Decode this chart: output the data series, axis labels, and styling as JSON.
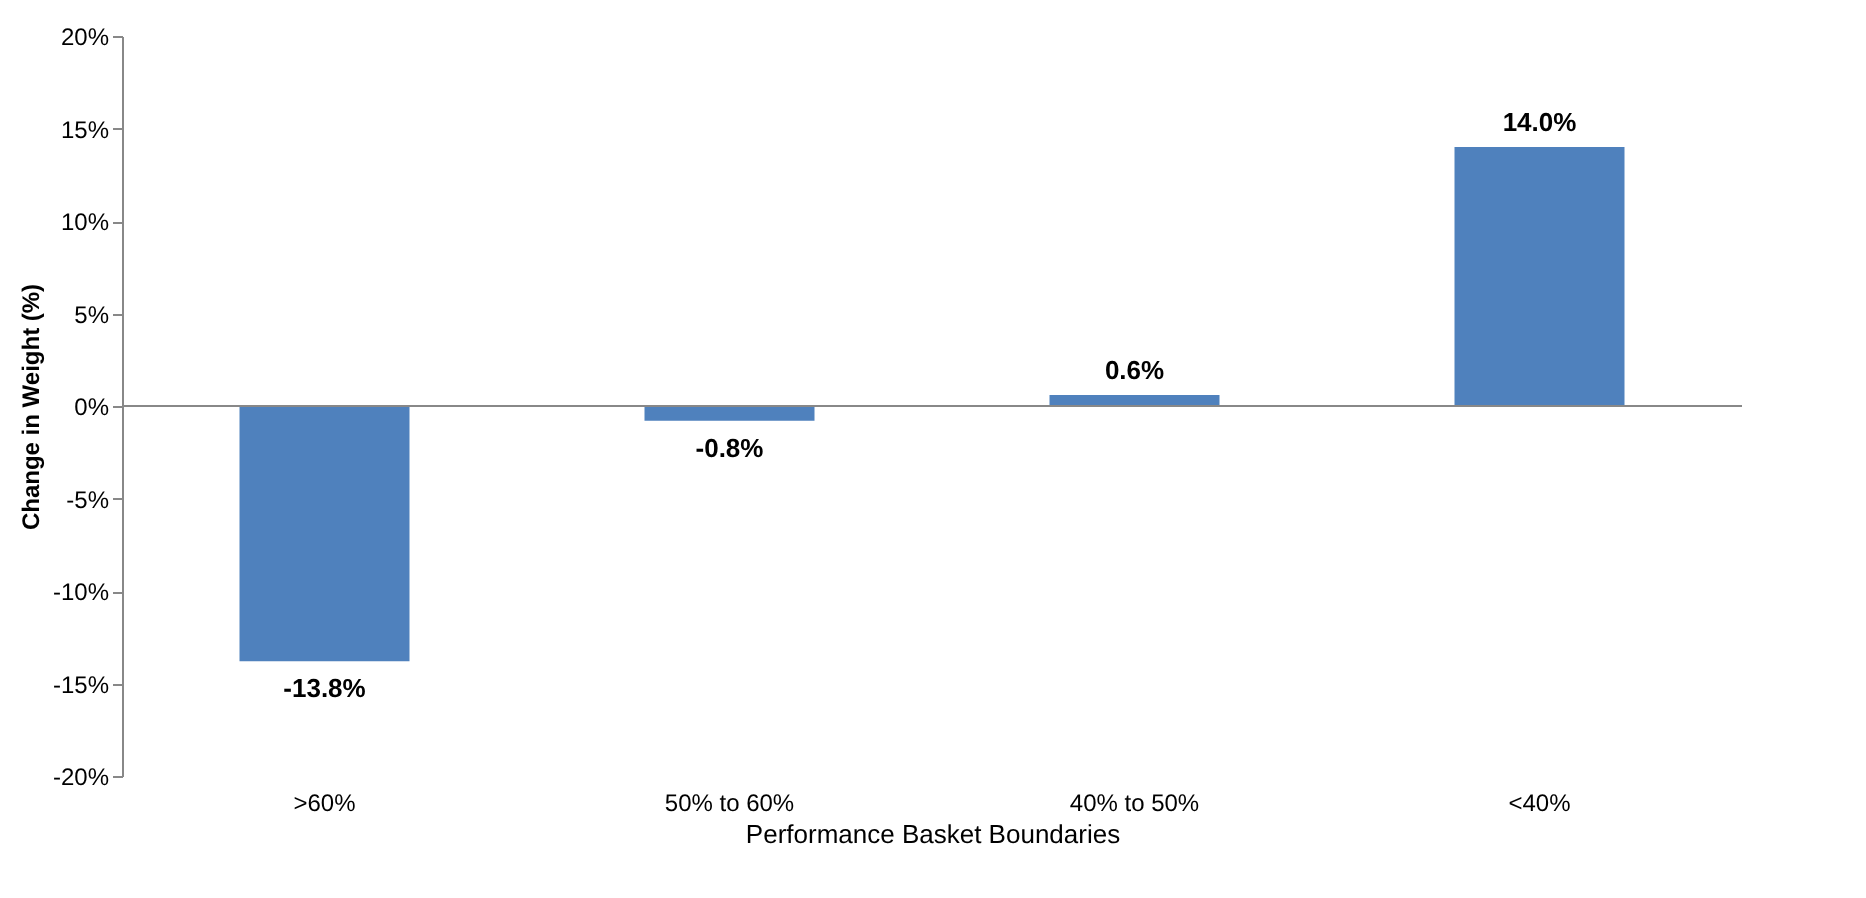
{
  "chart_data": {
    "type": "bar",
    "xlabel": "Performance Basket Boundaries",
    "ylabel": "Change in Weight (%)",
    "categories": [
      ">60%",
      "50% to 60%",
      "40% to 50%",
      "<40%"
    ],
    "values": [
      -13.8,
      -0.8,
      0.6,
      14.0
    ],
    "color": "#4f81bd",
    "value_labels": [
      "-13.8%",
      "-0.8%",
      "0.6%",
      "14.0%"
    ],
    "ylim": [
      -20,
      20
    ],
    "yticks": [
      {
        "value": -20,
        "label": "-20%"
      },
      {
        "value": -15,
        "label": "-15%"
      },
      {
        "value": -10,
        "label": "-10%"
      },
      {
        "value": -5,
        "label": "-5%"
      },
      {
        "value": 0,
        "label": "0%"
      },
      {
        "value": 5,
        "label": "5%"
      },
      {
        "value": 10,
        "label": "10%"
      },
      {
        "value": 15,
        "label": "15%"
      },
      {
        "value": 20,
        "label": "20%"
      }
    ],
    "tick_labels": true
  }
}
